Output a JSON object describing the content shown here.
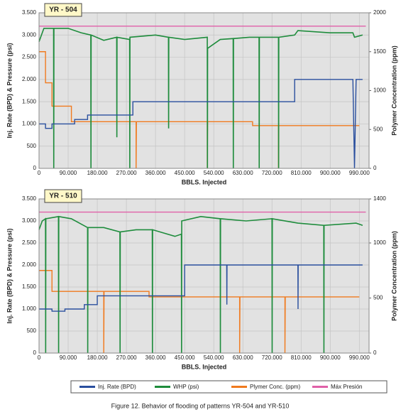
{
  "caption": "Figure 12. Behavior of flooding of patterns YR-504 and YR-510",
  "chart_data": [
    {
      "type": "line",
      "title": "YR - 504",
      "xlabel": "BBLS. Injected",
      "ylabel": "Inj. Rate (BPD) & Pressure (psi)",
      "y2label": "Polymer Concentration (ppm)",
      "xlim": [
        0,
        1020000
      ],
      "xticks": [
        0,
        {
          "value": 90000,
          "label": "90.000"
        },
        {
          "value": 180000,
          "label": "180.000"
        },
        {
          "value": 270000,
          "label": "270.000"
        },
        {
          "value": 360000,
          "label": "360.000"
        },
        {
          "value": 450000,
          "label": "450.000"
        },
        {
          "value": 540000,
          "label": "540.000"
        },
        {
          "value": 630000,
          "label": "630.000"
        },
        {
          "value": 720000,
          "label": "720.000"
        },
        {
          "value": 810000,
          "label": "810.000"
        },
        {
          "value": 900000,
          "label": "900.000"
        },
        {
          "value": 990000,
          "label": "990.000"
        }
      ],
      "ylim": [
        0,
        3500
      ],
      "yticks": [
        0,
        500,
        {
          "value": 1000,
          "label": "1.000"
        },
        {
          "value": 1500,
          "label": "1.500"
        },
        {
          "value": 2000,
          "label": "2.000"
        },
        {
          "value": 2500,
          "label": "2.500"
        },
        {
          "value": 3000,
          "label": "3.000"
        },
        {
          "value": 3500,
          "label": "3.500"
        }
      ],
      "y2lim": [
        0,
        2000
      ],
      "y2ticks": [
        0,
        500,
        1000,
        1500,
        2000
      ],
      "grid": true,
      "series": [
        {
          "name": "Inj. Rate (BPD)",
          "color": "#2a4f9e",
          "x": [
            0,
            20000,
            20000,
            40000,
            40000,
            110000,
            110000,
            150000,
            150000,
            290000,
            290000,
            790000,
            790000,
            970000,
            975000,
            980000,
            1000000
          ],
          "values": [
            1000,
            1000,
            900,
            900,
            1000,
            1000,
            1100,
            1100,
            1200,
            1200,
            1500,
            1500,
            2000,
            2000,
            0,
            2000,
            2000
          ]
        },
        {
          "name": "WHP (psi)",
          "color": "#1e8c3c",
          "x": [
            0,
            15000,
            45000,
            45500,
            46000,
            90000,
            130000,
            160000,
            160500,
            161000,
            200000,
            240000,
            240500,
            241000,
            280000,
            280500,
            281000,
            360000,
            400000,
            400500,
            401000,
            450000,
            520000,
            520500,
            521000,
            560000,
            600000,
            600500,
            601000,
            650000,
            680000,
            680500,
            681000,
            740000,
            740500,
            741000,
            790000,
            800000,
            900000,
            970000,
            975000,
            1000000
          ],
          "values": [
            2850,
            3150,
            3150,
            0,
            3150,
            3150,
            3050,
            3000,
            0,
            3000,
            2880,
            2950,
            700,
            2950,
            2900,
            0,
            2950,
            3000,
            2950,
            900,
            2950,
            2900,
            2950,
            0,
            2700,
            2900,
            2920,
            0,
            2920,
            2950,
            2950,
            0,
            2950,
            2950,
            0,
            2950,
            3000,
            3100,
            3050,
            3050,
            2950,
            3000
          ]
        },
        {
          "name": "Plymer Conc. (ppm)",
          "color": "#f07a1e",
          "axis": "y2",
          "x": [
            0,
            20000,
            20000,
            40000,
            40000,
            100000,
            100000,
            300000,
            300000,
            301000,
            520000,
            520000,
            521000,
            660000,
            660000,
            740000,
            740000,
            741000,
            990000
          ],
          "values": [
            1500,
            1500,
            1100,
            1100,
            800,
            800,
            600,
            600,
            0,
            600,
            600,
            0,
            600,
            600,
            550,
            550,
            0,
            550,
            550
          ]
        },
        {
          "name": "Máx Presión",
          "color": "#e060a8",
          "x": [
            0,
            1010000
          ],
          "values": [
            3200,
            3200
          ]
        }
      ]
    },
    {
      "type": "line",
      "title": "YR - 510",
      "xlabel": "BBLS. Injected",
      "ylabel": "Inj. Rate (BPD) & Pressure (psi)",
      "y2label": "Polymer Concentration (ppm)",
      "xlim": [
        0,
        1020000
      ],
      "xticks": [
        0,
        {
          "value": 90000,
          "label": "90.000"
        },
        {
          "value": 180000,
          "label": "180.000"
        },
        {
          "value": 270000,
          "label": "270.000"
        },
        {
          "value": 360000,
          "label": "360.000"
        },
        {
          "value": 450000,
          "label": "450.000"
        },
        {
          "value": 540000,
          "label": "540.000"
        },
        {
          "value": 630000,
          "label": "630.000"
        },
        {
          "value": 720000,
          "label": "720.000"
        },
        {
          "value": 810000,
          "label": "810.000"
        },
        {
          "value": 900000,
          "label": "900.000"
        },
        {
          "value": 990000,
          "label": "990.000"
        }
      ],
      "ylim": [
        0,
        3500
      ],
      "yticks": [
        0,
        500,
        {
          "value": 1000,
          "label": "1.000"
        },
        {
          "value": 1500,
          "label": "1.500"
        },
        {
          "value": 2000,
          "label": "2.000"
        },
        {
          "value": 2500,
          "label": "2.500"
        },
        {
          "value": 3000,
          "label": "3.000"
        },
        {
          "value": 3500,
          "label": "3.500"
        }
      ],
      "y2lim": [
        0,
        1400
      ],
      "y2ticks": [
        0,
        500,
        1000,
        1400
      ],
      "grid": true,
      "series": [
        {
          "name": "Inj. Rate (BPD)",
          "color": "#2a4f9e",
          "x": [
            0,
            40000,
            40000,
            80000,
            80000,
            140000,
            140000,
            180000,
            180000,
            450000,
            450000,
            580000,
            580500,
            581000,
            800000,
            800500,
            801000,
            1000000
          ],
          "values": [
            1000,
            1000,
            950,
            950,
            1000,
            1000,
            1100,
            1100,
            1300,
            1300,
            2000,
            2000,
            1100,
            2000,
            2000,
            1000,
            2000,
            2000
          ]
        },
        {
          "name": "WHP (psi)",
          "color": "#1e8c3c",
          "x": [
            0,
            10000,
            20000,
            20500,
            21000,
            60000,
            60500,
            61000,
            100000,
            150000,
            150500,
            151000,
            200000,
            250000,
            250500,
            251000,
            300000,
            350000,
            350500,
            351000,
            420000,
            440000,
            440500,
            441000,
            500000,
            560000,
            560500,
            561000,
            640000,
            720000,
            720500,
            721000,
            800000,
            880000,
            880500,
            881000,
            980000,
            1000000
          ],
          "values": [
            2800,
            3000,
            3050,
            0,
            3050,
            3100,
            0,
            3100,
            3050,
            2850,
            0,
            2850,
            2850,
            2750,
            0,
            2750,
            2800,
            2800,
            0,
            2800,
            2650,
            2700,
            0,
            3000,
            3100,
            3050,
            0,
            3050,
            3000,
            3050,
            0,
            3050,
            2950,
            2900,
            0,
            2900,
            2950,
            2900
          ]
        },
        {
          "name": "Plymer Conc. (ppm)",
          "color": "#f07a1e",
          "axis": "y2",
          "x": [
            0,
            40000,
            40000,
            200000,
            200000,
            201000,
            340000,
            340000,
            620000,
            620000,
            621000,
            760000,
            760000,
            761000,
            990000
          ],
          "values": [
            750,
            750,
            560,
            560,
            0,
            560,
            560,
            510,
            510,
            0,
            510,
            510,
            0,
            510,
            510
          ]
        },
        {
          "name": "Máx Presión",
          "color": "#e060a8",
          "x": [
            0,
            1010000
          ],
          "values": [
            3200,
            3200
          ]
        }
      ]
    }
  ]
}
